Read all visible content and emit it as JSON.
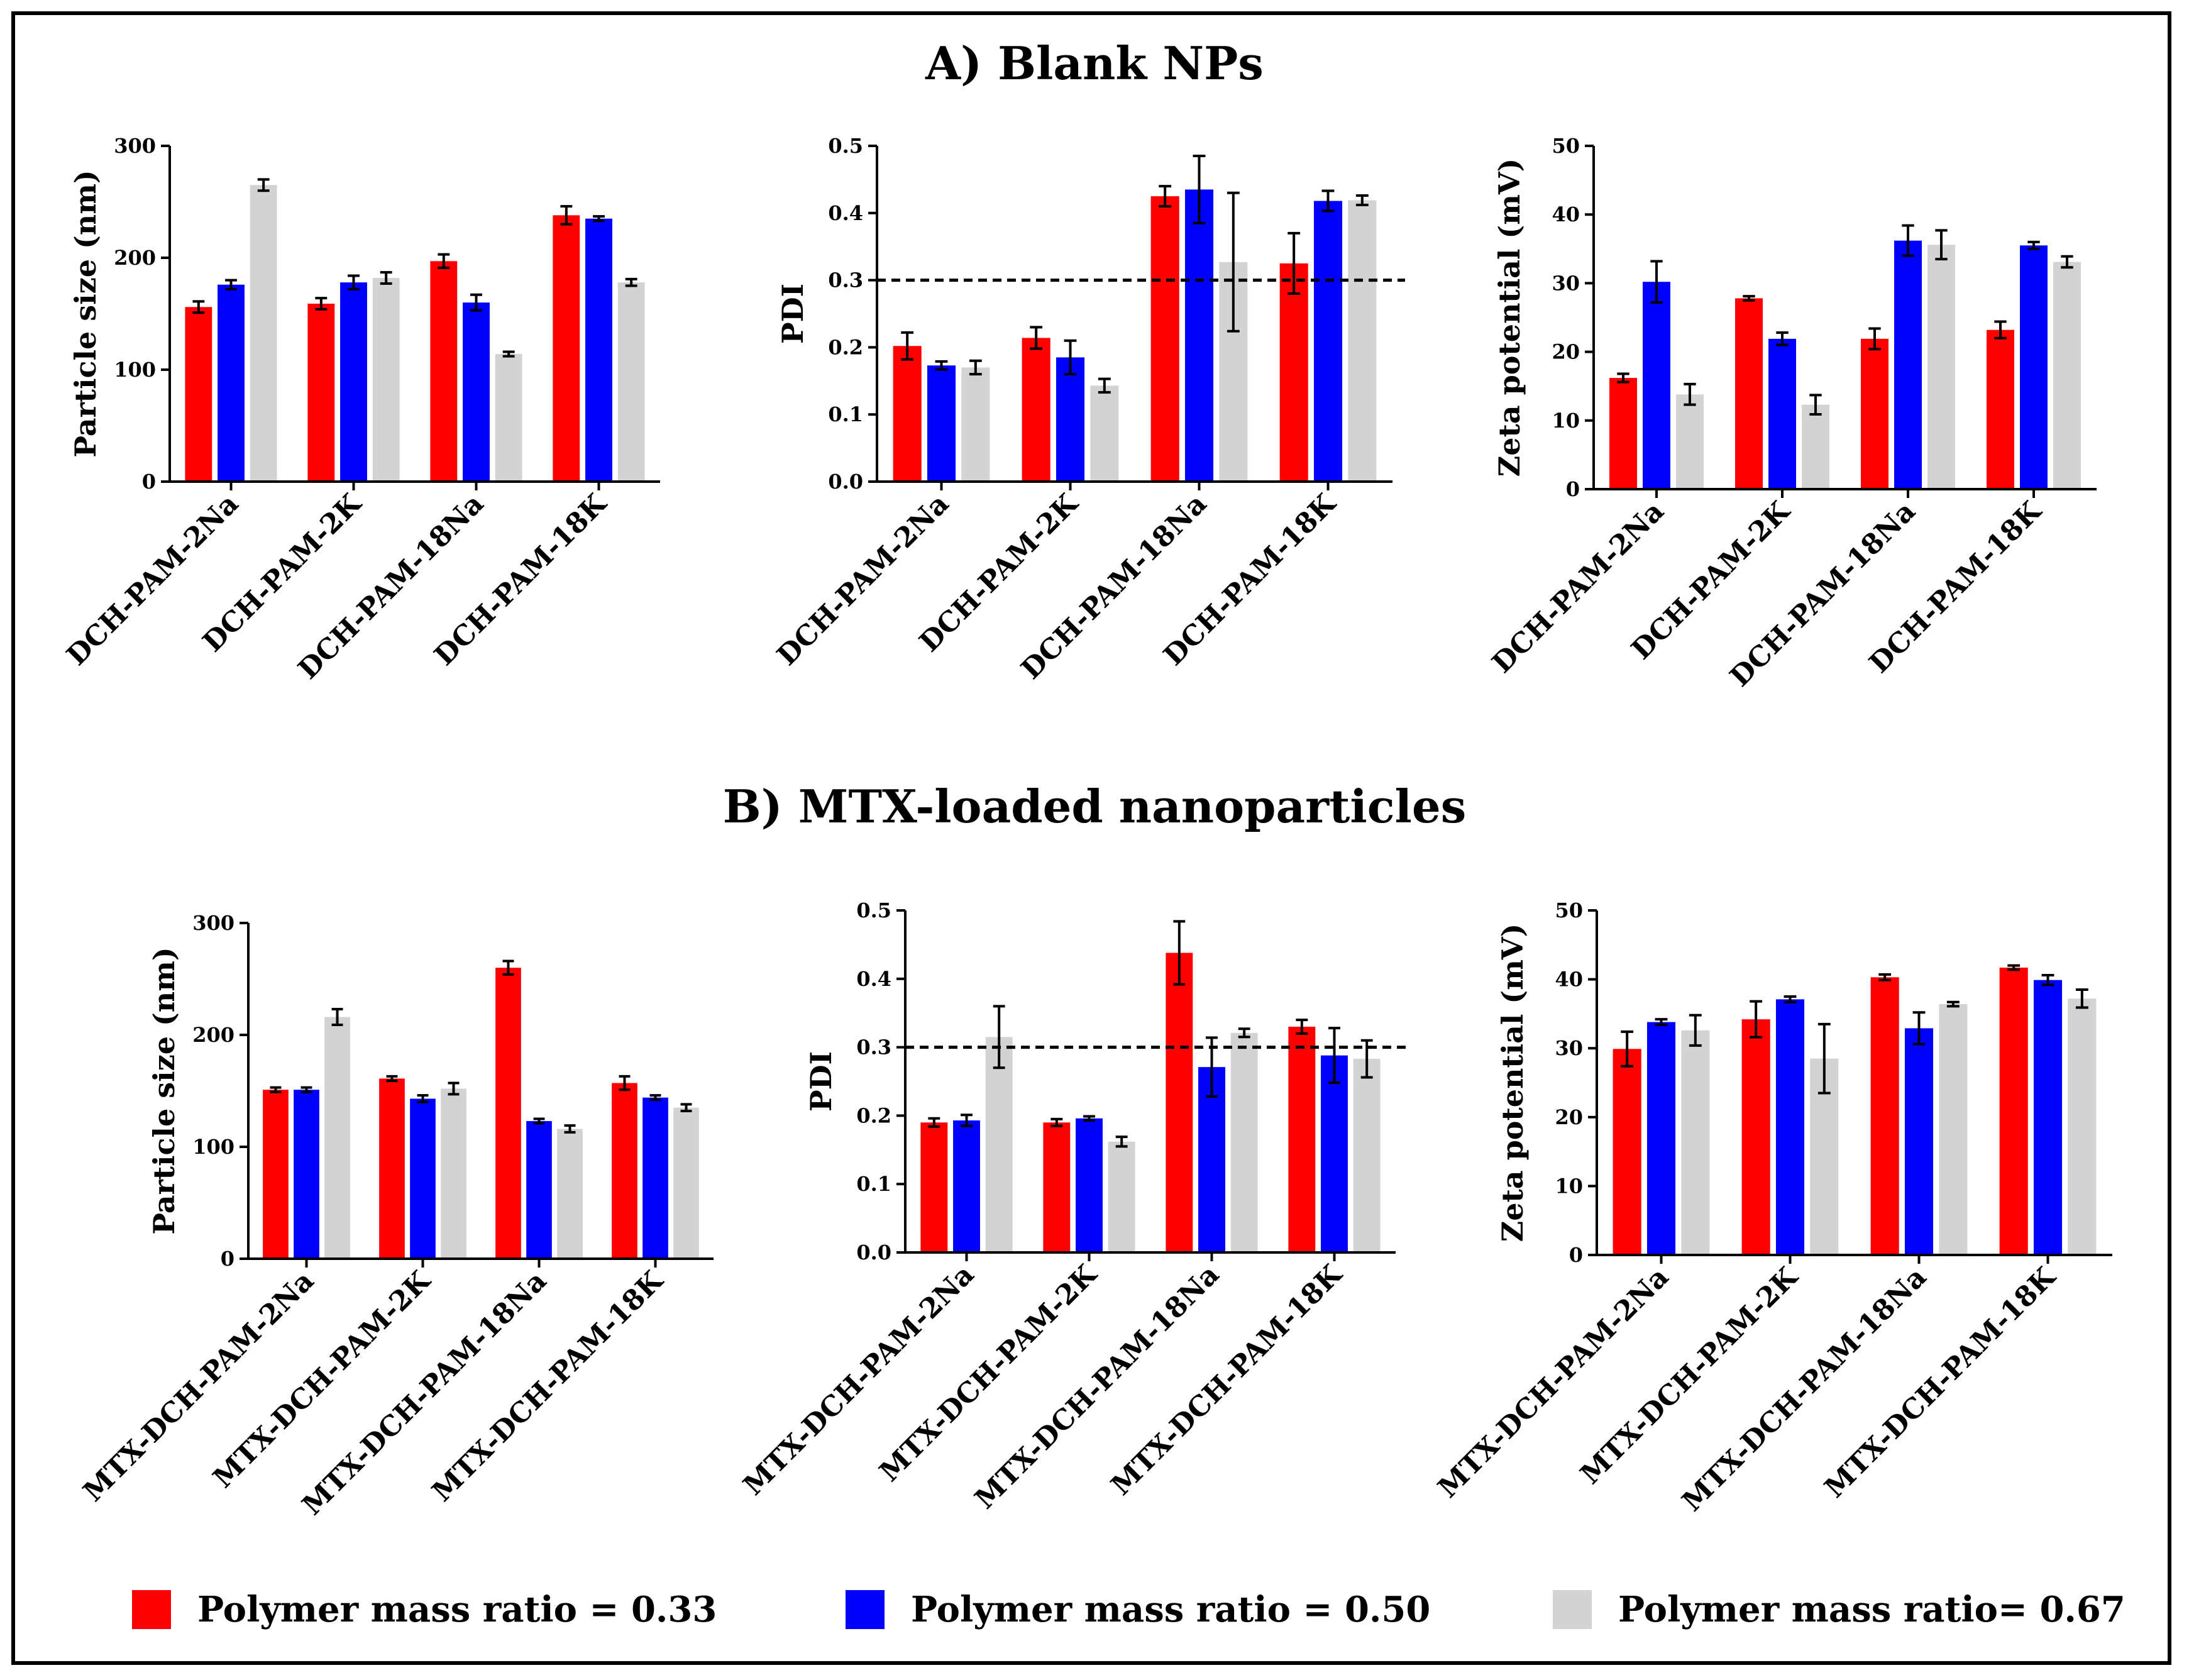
{
  "titles": {
    "blank": "A) Blank NPs",
    "loaded": "B) MTX-loaded nanoparticles"
  },
  "colors": {
    "series": [
      "#ff0000",
      "#0000ff",
      "#d3d3d3"
    ],
    "axis": "#000000",
    "reference_line": "#000000"
  },
  "legend": [
    {
      "label": "Polymer mass ratio = 0.33",
      "color": "#ff0000"
    },
    {
      "label": "Polymer mass ratio = 0.50",
      "color": "#0000ff"
    },
    {
      "label": "Polymer mass ratio= 0.67",
      "color": "#d3d3d3"
    }
  ],
  "chart_data": [
    {
      "id": "blank-size",
      "type": "bar",
      "panel": "A",
      "ylabel": "Particle size (nm)",
      "ylim": [
        0,
        300
      ],
      "yticks": [
        0,
        100,
        200,
        300
      ],
      "categories": [
        "DCH-PAM-2Na",
        "DCH-PAM-2K",
        "DCH-PAM-18Na",
        "DCH-PAM-18K"
      ],
      "series": [
        {
          "name": "Polymer mass ratio = 0.33",
          "values": [
            156,
            159,
            197,
            238
          ],
          "errors": [
            5,
            5,
            6,
            8
          ]
        },
        {
          "name": "Polymer mass ratio = 0.50",
          "values": [
            176,
            178,
            160,
            235
          ],
          "errors": [
            4,
            6,
            7,
            2
          ]
        },
        {
          "name": "Polymer mass ratio = 0.67",
          "values": [
            265,
            182,
            114,
            178
          ],
          "errors": [
            5,
            5,
            2,
            3
          ]
        }
      ]
    },
    {
      "id": "blank-pdi",
      "type": "bar",
      "panel": "A",
      "ylabel": "PDI",
      "ylim": [
        0,
        0.5
      ],
      "yticks": [
        0.0,
        0.1,
        0.2,
        0.3,
        0.4,
        0.5
      ],
      "ytick_labels": [
        "0.0",
        "0.1",
        "0.2",
        "0.3",
        "0.4",
        "0.5"
      ],
      "reference_line": 0.3,
      "categories": [
        "DCH-PAM-2Na",
        "DCH-PAM-2K",
        "DCH-PAM-18Na",
        "DCH-PAM-18K"
      ],
      "series": [
        {
          "name": "Polymer mass ratio = 0.33",
          "values": [
            0.202,
            0.214,
            0.425,
            0.325
          ],
          "errors": [
            0.02,
            0.016,
            0.015,
            0.045
          ]
        },
        {
          "name": "Polymer mass ratio = 0.50",
          "values": [
            0.173,
            0.185,
            0.435,
            0.418
          ],
          "errors": [
            0.006,
            0.025,
            0.05,
            0.015
          ]
        },
        {
          "name": "Polymer mass ratio = 0.67",
          "values": [
            0.17,
            0.143,
            0.327,
            0.419
          ],
          "errors": [
            0.01,
            0.01,
            0.103,
            0.007
          ]
        }
      ]
    },
    {
      "id": "blank-zeta",
      "type": "bar",
      "panel": "A",
      "ylabel": "Zeta potential (mV)",
      "ylim": [
        0,
        50
      ],
      "yticks": [
        0,
        10,
        20,
        30,
        40,
        50
      ],
      "categories": [
        "DCH-PAM-2Na",
        "DCH-PAM-2K",
        "DCH-PAM-18Na",
        "DCH-PAM-18K"
      ],
      "series": [
        {
          "name": "Polymer mass ratio = 0.33",
          "values": [
            16.2,
            27.8,
            21.9,
            23.2
          ],
          "errors": [
            0.6,
            0.3,
            1.5,
            1.2
          ]
        },
        {
          "name": "Polymer mass ratio = 0.50",
          "values": [
            30.2,
            21.9,
            36.2,
            35.5
          ],
          "errors": [
            3.0,
            0.9,
            2.2,
            0.5
          ]
        },
        {
          "name": "Polymer mass ratio = 0.67",
          "values": [
            13.8,
            12.3,
            35.6,
            33.1
          ],
          "errors": [
            1.5,
            1.4,
            2.1,
            0.8
          ]
        }
      ]
    },
    {
      "id": "loaded-size",
      "type": "bar",
      "panel": "B",
      "ylabel": "Particle size (nm)",
      "ylim": [
        0,
        300
      ],
      "yticks": [
        0,
        100,
        200,
        300
      ],
      "categories": [
        "MTX-DCH-PAM-2Na",
        "MTX-DCH-PAM-2K",
        "MTX-DCH-PAM-18Na",
        "MTX-DCH-PAM-18K"
      ],
      "series": [
        {
          "name": "Polymer mass ratio = 0.33",
          "values": [
            151,
            161,
            260,
            157
          ],
          "errors": [
            2,
            2,
            6,
            6
          ]
        },
        {
          "name": "Polymer mass ratio = 0.50",
          "values": [
            151,
            143,
            123,
            144
          ],
          "errors": [
            2,
            3,
            2,
            2
          ]
        },
        {
          "name": "Polymer mass ratio = 0.67",
          "values": [
            216,
            152,
            116,
            135
          ],
          "errors": [
            7,
            5,
            3,
            3
          ]
        }
      ]
    },
    {
      "id": "loaded-pdi",
      "type": "bar",
      "panel": "B",
      "ylabel": "PDI",
      "ylim": [
        0,
        0.5
      ],
      "yticks": [
        0.0,
        0.1,
        0.2,
        0.3,
        0.4,
        0.5
      ],
      "ytick_labels": [
        "0.0",
        "0.1",
        "0.2",
        "0.3",
        "0.4",
        "0.5"
      ],
      "reference_line": 0.3,
      "categories": [
        "MTX-DCH-PAM-2Na",
        "MTX-DCH-PAM-2K",
        "MTX-DCH-PAM-18Na",
        "MTX-DCH-PAM-18K"
      ],
      "series": [
        {
          "name": "Polymer mass ratio = 0.33",
          "values": [
            0.19,
            0.19,
            0.438,
            0.33
          ],
          "errors": [
            0.006,
            0.005,
            0.046,
            0.01
          ]
        },
        {
          "name": "Polymer mass ratio = 0.50",
          "values": [
            0.193,
            0.196,
            0.271,
            0.288
          ],
          "errors": [
            0.008,
            0.003,
            0.043,
            0.04
          ]
        },
        {
          "name": "Polymer mass ratio = 0.67",
          "values": [
            0.315,
            0.162,
            0.321,
            0.283
          ],
          "errors": [
            0.045,
            0.007,
            0.006,
            0.027
          ]
        }
      ]
    },
    {
      "id": "loaded-zeta",
      "type": "bar",
      "panel": "B",
      "ylabel": "Zeta potential (mV)",
      "ylim": [
        0,
        50
      ],
      "yticks": [
        0,
        10,
        20,
        30,
        40,
        50
      ],
      "categories": [
        "MTX-DCH-PAM-2Na",
        "MTX-DCH-PAM-2K",
        "MTX-DCH-PAM-18Na",
        "MTX-DCH-PAM-18K"
      ],
      "series": [
        {
          "name": "Polymer mass ratio = 0.33",
          "values": [
            29.9,
            34.2,
            40.3,
            41.7
          ],
          "errors": [
            2.5,
            2.6,
            0.4,
            0.3
          ]
        },
        {
          "name": "Polymer mass ratio = 0.50",
          "values": [
            33.8,
            37.1,
            32.9,
            39.9
          ],
          "errors": [
            0.4,
            0.4,
            2.3,
            0.7
          ]
        },
        {
          "name": "Polymer mass ratio = 0.67",
          "values": [
            32.6,
            28.5,
            36.4,
            37.2
          ],
          "errors": [
            2.2,
            5.0,
            0.3,
            1.3
          ]
        }
      ]
    }
  ]
}
